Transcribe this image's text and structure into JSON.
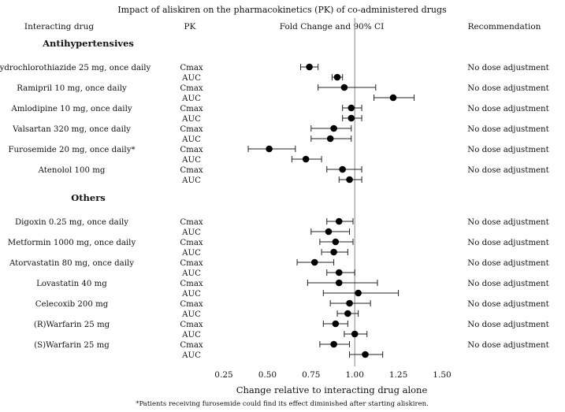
{
  "chart_data": {
    "type": "forest",
    "title": "Impact of aliskiren on the pharmacokinetics (PK) of co-administered drugs",
    "columns": {
      "drug": "Interacting drug",
      "pk": "PK",
      "fold": "Fold Change and 90% CI",
      "rec": "Recommendation"
    },
    "xlabel": "Change relative to interacting drug alone",
    "xlim": [
      0.25,
      1.5
    ],
    "xticks": [
      "0.25",
      "0.50",
      "0.75",
      "1.00",
      "1.25",
      "1.50"
    ],
    "reference_line": 1.0,
    "footnote": "*Patients receiving furosemide could find its effect diminished after starting aliskiren.",
    "groups": [
      {
        "name": "Antihypertensives",
        "drugs": [
          {
            "drug": "Hydrochlorothiazide 25 mg, once daily",
            "recommendation": "No dose adjustment",
            "rows": [
              {
                "pk": "Cmax",
                "est": 0.74,
                "lo": 0.69,
                "hi": 0.79
              },
              {
                "pk": "AUC",
                "est": 0.9,
                "lo": 0.87,
                "hi": 0.93
              }
            ]
          },
          {
            "drug": "Ramipril 10 mg, once daily",
            "recommendation": "No dose adjustment",
            "rows": [
              {
                "pk": "Cmax",
                "est": 0.94,
                "lo": 0.79,
                "hi": 1.12
              },
              {
                "pk": "AUC",
                "est": 1.22,
                "lo": 1.11,
                "hi": 1.34
              }
            ]
          },
          {
            "drug": "Amlodipine 10 mg, once daily",
            "recommendation": "No dose adjustment",
            "rows": [
              {
                "pk": "Cmax",
                "est": 0.98,
                "lo": 0.93,
                "hi": 1.04
              },
              {
                "pk": "AUC",
                "est": 0.98,
                "lo": 0.93,
                "hi": 1.04
              }
            ]
          },
          {
            "drug": "Valsartan 320 mg, once daily",
            "recommendation": "No dose adjustment",
            "rows": [
              {
                "pk": "Cmax",
                "est": 0.88,
                "lo": 0.75,
                "hi": 0.98
              },
              {
                "pk": "AUC",
                "est": 0.86,
                "lo": 0.75,
                "hi": 0.98
              }
            ]
          },
          {
            "drug": "Furosemide 20 mg, once daily*",
            "recommendation": "No dose adjustment",
            "rows": [
              {
                "pk": "Cmax",
                "est": 0.51,
                "lo": 0.39,
                "hi": 0.66
              },
              {
                "pk": "AUC",
                "est": 0.72,
                "lo": 0.64,
                "hi": 0.81
              }
            ]
          },
          {
            "drug": "Atenolol 100 mg",
            "recommendation": "No dose adjustment",
            "rows": [
              {
                "pk": "Cmax",
                "est": 0.93,
                "lo": 0.84,
                "hi": 1.04
              },
              {
                "pk": "AUC",
                "est": 0.97,
                "lo": 0.91,
                "hi": 1.04
              }
            ]
          }
        ]
      },
      {
        "name": "Others",
        "drugs": [
          {
            "drug": "Digoxin 0.25 mg, once daily",
            "recommendation": "No dose adjustment",
            "rows": [
              {
                "pk": "Cmax",
                "est": 0.91,
                "lo": 0.84,
                "hi": 0.99
              },
              {
                "pk": "AUC",
                "est": 0.85,
                "lo": 0.75,
                "hi": 0.97
              }
            ]
          },
          {
            "drug": "Metformin 1000 mg, once daily",
            "recommendation": "No dose adjustment",
            "rows": [
              {
                "pk": "Cmax",
                "est": 0.89,
                "lo": 0.8,
                "hi": 0.99
              },
              {
                "pk": "AUC",
                "est": 0.88,
                "lo": 0.81,
                "hi": 0.96
              }
            ]
          },
          {
            "drug": "Atorvastatin 80 mg, once daily",
            "recommendation": "No dose adjustment",
            "rows": [
              {
                "pk": "Cmax",
                "est": 0.77,
                "lo": 0.67,
                "hi": 0.88
              },
              {
                "pk": "AUC",
                "est": 0.91,
                "lo": 0.84,
                "hi": 1.0
              }
            ]
          },
          {
            "drug": "Lovastatin 40 mg",
            "recommendation": "No dose adjustment",
            "rows": [
              {
                "pk": "Cmax",
                "est": 0.91,
                "lo": 0.73,
                "hi": 1.13
              },
              {
                "pk": "AUC",
                "est": 1.02,
                "lo": 0.82,
                "hi": 1.25
              }
            ]
          },
          {
            "drug": "Celecoxib 200 mg",
            "recommendation": "No dose adjustment",
            "rows": [
              {
                "pk": "Cmax",
                "est": 0.97,
                "lo": 0.86,
                "hi": 1.09
              },
              {
                "pk": "AUC",
                "est": 0.96,
                "lo": 0.9,
                "hi": 1.02
              }
            ]
          },
          {
            "drug": "(R)Warfarin 25 mg",
            "recommendation": "No dose adjustment",
            "rows": [
              {
                "pk": "Cmax",
                "est": 0.89,
                "lo": 0.82,
                "hi": 0.96
              },
              {
                "pk": "AUC",
                "est": 1.0,
                "lo": 0.94,
                "hi": 1.07
              }
            ]
          },
          {
            "drug": "(S)Warfarin 25 mg",
            "recommendation": "No dose adjustment",
            "rows": [
              {
                "pk": "Cmax",
                "est": 0.88,
                "lo": 0.8,
                "hi": 0.97
              },
              {
                "pk": "AUC",
                "est": 1.06,
                "lo": 0.97,
                "hi": 1.16
              }
            ]
          }
        ]
      }
    ]
  }
}
